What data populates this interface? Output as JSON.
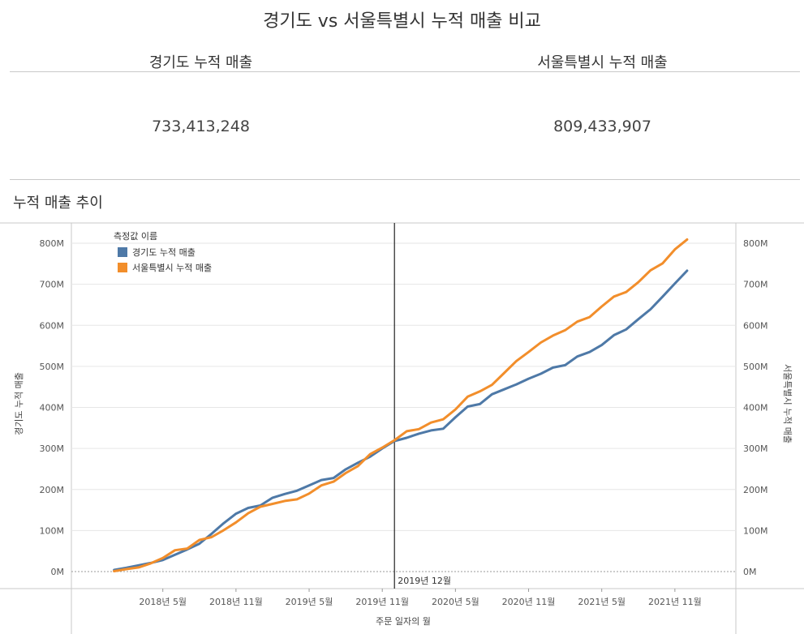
{
  "dashboard": {
    "title": "경기도 vs 서울특별시 누적 매출 비교",
    "kpis": [
      {
        "label": "경기도 누적 매출",
        "value": "733,413,248"
      },
      {
        "label": "서울특별시 누적 매출",
        "value": "809,433,907"
      }
    ],
    "section_title": "누적 매출 추이"
  },
  "colors": {
    "gyeonggi": "#4e79a7",
    "seoul": "#f28e2b",
    "axis": "#666666",
    "grid": "#e6e6e6",
    "refline": "#333333"
  },
  "chart_data": {
    "type": "line",
    "legend_title": "측정값 이름",
    "legend_position": "top-left",
    "xlabel": "주문 일자의 월",
    "ylabel_left": "경기도 누적 매출",
    "ylabel_right": "서울특별시 누적 매출",
    "ylim": [
      0,
      800
    ],
    "y_ticks": [
      "0M",
      "100M",
      "200M",
      "300M",
      "400M",
      "500M",
      "600M",
      "700M",
      "800M"
    ],
    "x_ticks": [
      "2018년 5월",
      "2018년 11월",
      "2019년 5월",
      "2019년 11월",
      "2020년 5월",
      "2020년 11월",
      "2021년 5월",
      "2021년 11월"
    ],
    "x_tick_months": [
      4,
      10,
      16,
      22,
      28,
      34,
      40,
      46
    ],
    "x_range_months": [
      -3.5,
      51
    ],
    "reference_line": {
      "label": "2019년 12월",
      "month": 23
    },
    "x_start": "2018년 1월",
    "series": [
      {
        "name": "경기도 누적 매출",
        "color_key": "gyeonggi",
        "values": [
          4,
          9,
          15,
          21,
          28,
          41,
          54,
          68,
          92,
          118,
          141,
          155,
          161,
          180,
          189,
          197,
          210,
          223,
          228,
          249,
          265,
          280,
          300,
          318,
          326,
          336,
          344,
          348,
          376,
          402,
          408,
          432,
          444,
          456,
          470,
          482,
          497,
          503,
          524,
          535,
          552,
          576,
          590,
          615,
          639,
          670,
          702,
          733
        ]
      },
      {
        "name": "서울특별시 누적 매출",
        "color_key": "seoul",
        "values": [
          1,
          6,
          10,
          20,
          33,
          52,
          56,
          77,
          84,
          101,
          120,
          142,
          158,
          165,
          172,
          176,
          190,
          210,
          219,
          240,
          257,
          286,
          302,
          320,
          342,
          347,
          363,
          371,
          395,
          426,
          439,
          455,
          484,
          513,
          535,
          558,
          575,
          588,
          609,
          620,
          646,
          670,
          681,
          705,
          734,
          751,
          785,
          809
        ]
      }
    ]
  }
}
